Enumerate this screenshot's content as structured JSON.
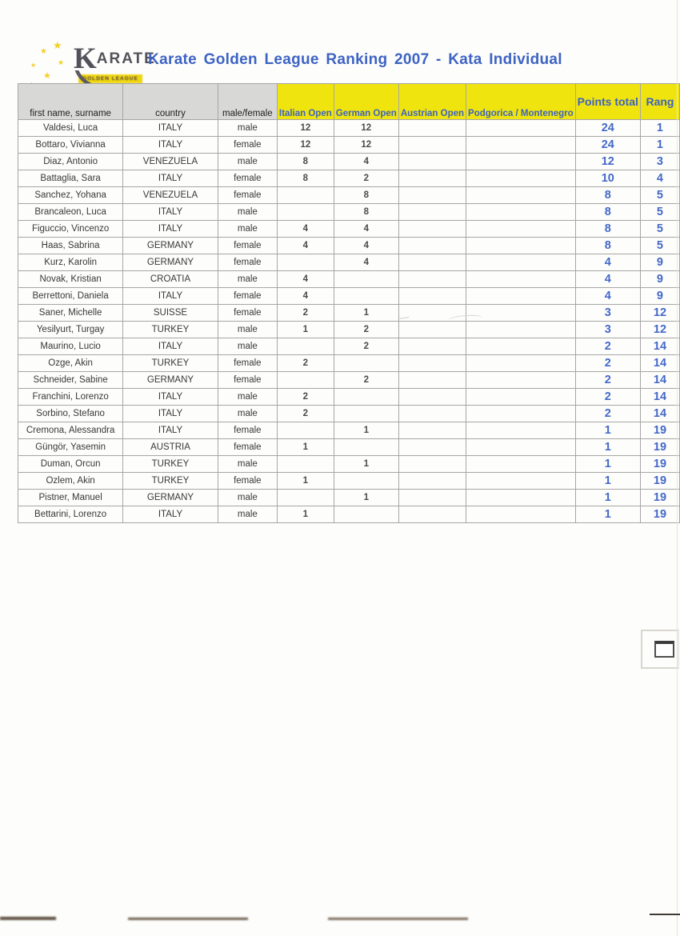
{
  "header": {
    "title": "Karate Golden League Ranking 2007 - Kata Individual"
  },
  "logo": {
    "brand_k": "K",
    "brand_rest": "ARATE",
    "tagline": "GOLDEN LEAGUE",
    "star": "★"
  },
  "colors": {
    "title_blue": "#3d63c3",
    "header_yellow": "#f0e40e",
    "header_gray": "#d8d8d6",
    "points_blue": "#4368c8"
  },
  "table": {
    "headers": {
      "name": "first name, surname",
      "country": "country",
      "gender": "male/female",
      "italian": "Italian Open",
      "german": "German Open",
      "austrian": "Austrian Open",
      "podgorica": "Podgorica / Montenegro",
      "points": "Points total",
      "rang": "Rang"
    },
    "rows": [
      {
        "name": "Valdesi, Luca",
        "country": "ITALY",
        "gender": "male",
        "italian": "12",
        "german": "12",
        "austrian": "",
        "podgorica": "",
        "points": "24",
        "rang": "1"
      },
      {
        "name": "Bottaro, Vivianna",
        "country": "ITALY",
        "gender": "female",
        "italian": "12",
        "german": "12",
        "austrian": "",
        "podgorica": "",
        "points": "24",
        "rang": "1"
      },
      {
        "name": "Diaz, Antonio",
        "country": "VENEZUELA",
        "gender": "male",
        "italian": "8",
        "german": "4",
        "austrian": "",
        "podgorica": "",
        "points": "12",
        "rang": "3"
      },
      {
        "name": "Battaglia, Sara",
        "country": "ITALY",
        "gender": "female",
        "italian": "8",
        "german": "2",
        "austrian": "",
        "podgorica": "",
        "points": "10",
        "rang": "4"
      },
      {
        "name": "Sanchez, Yohana",
        "country": "VENEZUELA",
        "gender": "female",
        "italian": "",
        "german": "8",
        "austrian": "",
        "podgorica": "",
        "points": "8",
        "rang": "5"
      },
      {
        "name": "Brancaleon, Luca",
        "country": "ITALY",
        "gender": "male",
        "italian": "",
        "german": "8",
        "austrian": "",
        "podgorica": "",
        "points": "8",
        "rang": "5"
      },
      {
        "name": "Figuccio, Vincenzo",
        "country": "ITALY",
        "gender": "male",
        "italian": "4",
        "german": "4",
        "austrian": "",
        "podgorica": "",
        "points": "8",
        "rang": "5"
      },
      {
        "name": "Haas, Sabrina",
        "country": "GERMANY",
        "gender": "female",
        "italian": "4",
        "german": "4",
        "austrian": "",
        "podgorica": "",
        "points": "8",
        "rang": "5"
      },
      {
        "name": "Kurz, Karolin",
        "country": "GERMANY",
        "gender": "female",
        "italian": "",
        "german": "4",
        "austrian": "",
        "podgorica": "",
        "points": "4",
        "rang": "9"
      },
      {
        "name": "Novak, Kristian",
        "country": "CROATIA",
        "gender": "male",
        "italian": "4",
        "german": "",
        "austrian": "",
        "podgorica": "",
        "points": "4",
        "rang": "9"
      },
      {
        "name": "Berrettoni, Daniela",
        "country": "ITALY",
        "gender": "female",
        "italian": "4",
        "german": "",
        "austrian": "",
        "podgorica": "",
        "points": "4",
        "rang": "9"
      },
      {
        "name": "Saner, Michelle",
        "country": "SUISSE",
        "gender": "female",
        "italian": "2",
        "german": "1",
        "austrian": "",
        "podgorica": "",
        "points": "3",
        "rang": "12"
      },
      {
        "name": "Yesilyurt, Turgay",
        "country": "TURKEY",
        "gender": "male",
        "italian": "1",
        "german": "2",
        "austrian": "",
        "podgorica": "",
        "points": "3",
        "rang": "12"
      },
      {
        "name": "Maurino, Lucio",
        "country": "ITALY",
        "gender": "male",
        "italian": "",
        "german": "2",
        "austrian": "",
        "podgorica": "",
        "points": "2",
        "rang": "14"
      },
      {
        "name": "Ozge, Akin",
        "country": "TURKEY",
        "gender": "female",
        "italian": "2",
        "german": "",
        "austrian": "",
        "podgorica": "",
        "points": "2",
        "rang": "14"
      },
      {
        "name": "Schneider, Sabine",
        "country": "GERMANY",
        "gender": "female",
        "italian": "",
        "german": "2",
        "austrian": "",
        "podgorica": "",
        "points": "2",
        "rang": "14"
      },
      {
        "name": "Franchini, Lorenzo",
        "country": "ITALY",
        "gender": "male",
        "italian": "2",
        "german": "",
        "austrian": "",
        "podgorica": "",
        "points": "2",
        "rang": "14"
      },
      {
        "name": "Sorbino, Stefano",
        "country": "ITALY",
        "gender": "male",
        "italian": "2",
        "german": "",
        "austrian": "",
        "podgorica": "",
        "points": "2",
        "rang": "14"
      },
      {
        "name": "Cremona, Alessandra",
        "country": "ITALY",
        "gender": "female",
        "italian": "",
        "german": "1",
        "austrian": "",
        "podgorica": "",
        "points": "1",
        "rang": "19"
      },
      {
        "name": "Güngör, Yasemin",
        "country": "AUSTRIA",
        "gender": "female",
        "italian": "1",
        "german": "",
        "austrian": "",
        "podgorica": "",
        "points": "1",
        "rang": "19"
      },
      {
        "name": "Duman, Orcun",
        "country": "TURKEY",
        "gender": "male",
        "italian": "",
        "german": "1",
        "austrian": "",
        "podgorica": "",
        "points": "1",
        "rang": "19"
      },
      {
        "name": "Ozlem, Akin",
        "country": "TURKEY",
        "gender": "female",
        "italian": "1",
        "german": "",
        "austrian": "",
        "podgorica": "",
        "points": "1",
        "rang": "19"
      },
      {
        "name": "Pistner, Manuel",
        "country": "GERMANY",
        "gender": "male",
        "italian": "",
        "german": "1",
        "austrian": "",
        "podgorica": "",
        "points": "1",
        "rang": "19"
      },
      {
        "name": "Bettarini, Lorenzo",
        "country": "ITALY",
        "gender": "male",
        "italian": "1",
        "german": "",
        "austrian": "",
        "podgorica": "",
        "points": "1",
        "rang": "19"
      }
    ]
  }
}
